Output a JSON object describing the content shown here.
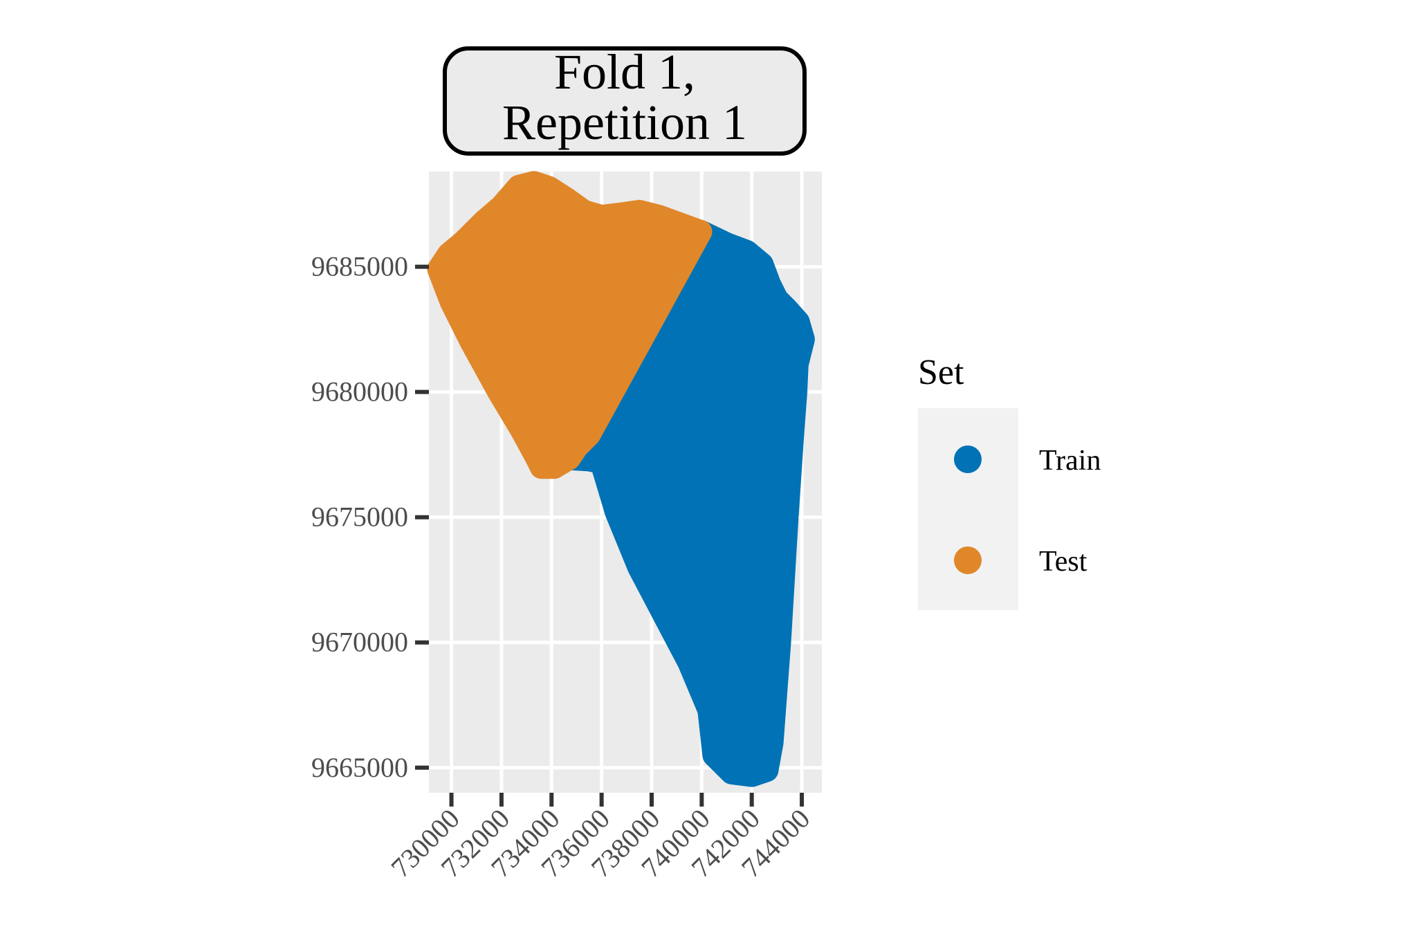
{
  "chart_data": {
    "type": "area",
    "facet_title_lines": [
      "Fold 1,",
      "Repetition 1"
    ],
    "xlabel": "",
    "ylabel": "",
    "xlim": [
      729100,
      744800
    ],
    "ylim": [
      9664000,
      9688800
    ],
    "x_ticks": [
      730000,
      732000,
      734000,
      736000,
      738000,
      740000,
      742000,
      744000
    ],
    "x_tick_labels": [
      "730000",
      "732000",
      "734000",
      "736000",
      "738000",
      "740000",
      "742000",
      "744000"
    ],
    "y_ticks": [
      9665000,
      9670000,
      9675000,
      9680000,
      9685000
    ],
    "y_tick_labels": [
      "9665000",
      "9670000",
      "9675000",
      "9680000",
      "9685000"
    ],
    "grid": true,
    "legend": {
      "title": "Set",
      "placement": "right"
    },
    "series": [
      {
        "name": "Train",
        "color": "#0072B5",
        "region": [
          [
            734700,
            9677350
          ],
          [
            735500,
            9677300
          ],
          [
            736000,
            9677200
          ],
          [
            736600,
            9675200
          ],
          [
            737500,
            9673000
          ],
          [
            738500,
            9671100
          ],
          [
            739500,
            9669200
          ],
          [
            740300,
            9667300
          ],
          [
            740500,
            9665500
          ],
          [
            741200,
            9664800
          ],
          [
            742000,
            9664700
          ],
          [
            742600,
            9664900
          ],
          [
            742800,
            9666000
          ],
          [
            743100,
            9670000
          ],
          [
            743400,
            9675000
          ],
          [
            743600,
            9678000
          ],
          [
            743750,
            9680000
          ],
          [
            743800,
            9681100
          ],
          [
            744050,
            9682100
          ],
          [
            743850,
            9682800
          ],
          [
            743400,
            9683300
          ],
          [
            743000,
            9683700
          ],
          [
            742700,
            9684300
          ],
          [
            742400,
            9685100
          ],
          [
            741800,
            9685600
          ],
          [
            741000,
            9685900
          ],
          [
            739950,
            9686400
          ],
          [
            737700,
            9682300
          ],
          [
            735500,
            9678300
          ],
          [
            735000,
            9677800
          ]
        ]
      },
      {
        "name": "Test",
        "color": "#E0872A",
        "region": [
          [
            729500,
            9684900
          ],
          [
            729900,
            9685500
          ],
          [
            730500,
            9686000
          ],
          [
            731300,
            9686800
          ],
          [
            732000,
            9687400
          ],
          [
            732700,
            9688200
          ],
          [
            733300,
            9688350
          ],
          [
            733900,
            9688150
          ],
          [
            734600,
            9687700
          ],
          [
            735300,
            9687200
          ],
          [
            736000,
            9687000
          ],
          [
            736800,
            9687100
          ],
          [
            737500,
            9687200
          ],
          [
            738300,
            9687000
          ],
          [
            739950,
            9686400
          ],
          [
            737700,
            9682300
          ],
          [
            735500,
            9678300
          ],
          [
            735000,
            9677800
          ],
          [
            734700,
            9677350
          ],
          [
            734100,
            9677000
          ],
          [
            733600,
            9677000
          ],
          [
            733400,
            9677400
          ],
          [
            732800,
            9678500
          ],
          [
            731900,
            9680000
          ],
          [
            730800,
            9682000
          ],
          [
            730000,
            9683600
          ]
        ]
      }
    ]
  }
}
